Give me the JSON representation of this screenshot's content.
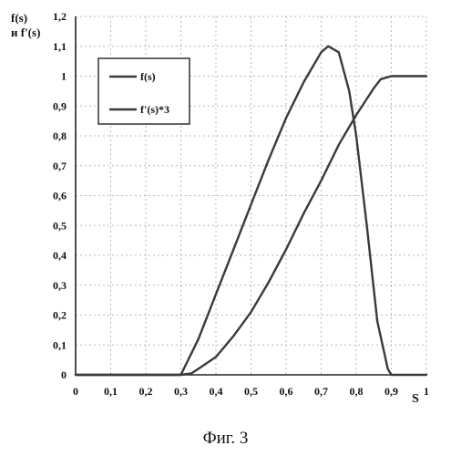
{
  "caption": "Фиг. 3",
  "chart_data": {
    "type": "line",
    "ylabel_line1": "f(s)",
    "ylabel_line2": "и f'(s)",
    "xlabel": "S",
    "xlim": [
      0,
      1
    ],
    "ylim": [
      0,
      1.2
    ],
    "x_ticks": [
      "0",
      "0,1",
      "0,2",
      "0,3",
      "0,4",
      "0,5",
      "0,6",
      "0,7",
      "0,8",
      "0,9",
      "1"
    ],
    "y_ticks": [
      "0",
      "0,1",
      "0,2",
      "0,3",
      "0,4",
      "0,5",
      "0,6",
      "0,7",
      "0,8",
      "0,9",
      "1",
      "1,1",
      "1,2"
    ],
    "grid": true,
    "legend_position": "top-left",
    "series": [
      {
        "name": "f(s)",
        "x": [
          0,
          0.3,
          0.33,
          0.35,
          0.4,
          0.45,
          0.5,
          0.55,
          0.6,
          0.65,
          0.7,
          0.75,
          0.8,
          0.85,
          0.87,
          0.9,
          1.0
        ],
        "y": [
          0,
          0,
          0.005,
          0.02,
          0.06,
          0.13,
          0.21,
          0.31,
          0.42,
          0.54,
          0.65,
          0.77,
          0.87,
          0.96,
          0.99,
          1.0,
          1.0
        ]
      },
      {
        "name": "f'(s)*3",
        "x": [
          0,
          0.3,
          0.35,
          0.4,
          0.45,
          0.5,
          0.55,
          0.6,
          0.65,
          0.7,
          0.72,
          0.75,
          0.78,
          0.8,
          0.83,
          0.86,
          0.89,
          0.9,
          0.92,
          1.0
        ],
        "y": [
          0,
          0,
          0.12,
          0.27,
          0.42,
          0.57,
          0.72,
          0.86,
          0.98,
          1.08,
          1.1,
          1.08,
          0.95,
          0.8,
          0.5,
          0.18,
          0.02,
          0,
          0,
          0
        ]
      }
    ]
  }
}
